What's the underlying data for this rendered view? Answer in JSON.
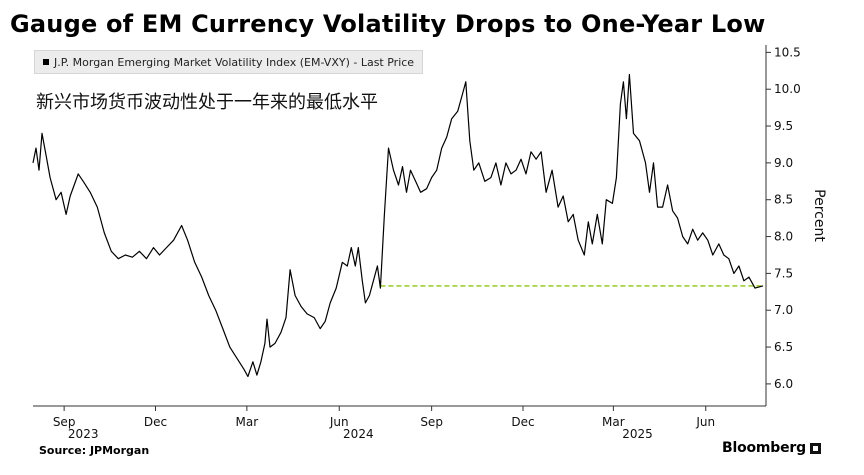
{
  "header": {
    "title": "Gauge of EM Currency Volatility Drops to One-Year Low",
    "legend_label": "J.P. Morgan Emerging Market Volatility Index (EM-VXY) - Last Price",
    "annotation": "新兴市场货币波动性处于一年来的最低水平"
  },
  "footer": {
    "source": "Source: JPMorgan",
    "brand": "Bloomberg"
  },
  "colors": {
    "line": "#000000",
    "reference_line": "#9ed22a",
    "axis": "#333333"
  },
  "chart_data": {
    "type": "line",
    "title": "Gauge of EM Currency Volatility Drops to One-Year Low",
    "ylabel": "Percent",
    "ylim": [
      5.7,
      10.6
    ],
    "yticks": [
      6.0,
      6.5,
      7.0,
      7.5,
      8.0,
      8.5,
      9.0,
      9.5,
      10.0,
      10.5
    ],
    "ytick_labels": [
      "6.0",
      "6.5",
      "7.0",
      "7.5",
      "8.0",
      "8.5",
      "9.0",
      "9.5",
      "10.0",
      "10.5"
    ],
    "y_axis_position": "right",
    "grid": false,
    "legend_position": "top-left",
    "xlim": [
      "2023-08-01",
      "2025-07-31"
    ],
    "month_ticks": [
      {
        "date": "2023-09-01",
        "label": "Sep"
      },
      {
        "date": "2023-12-01",
        "label": "Dec"
      },
      {
        "date": "2024-03-01",
        "label": "Mar"
      },
      {
        "date": "2024-06-01",
        "label": "Jun"
      },
      {
        "date": "2024-09-01",
        "label": "Sep"
      },
      {
        "date": "2024-12-01",
        "label": "Dec"
      },
      {
        "date": "2025-03-01",
        "label": "Mar"
      },
      {
        "date": "2025-06-01",
        "label": "Jun"
      }
    ],
    "year_labels": [
      {
        "date": "2023-09-20",
        "label": "2023"
      },
      {
        "date": "2024-06-20",
        "label": "2024"
      },
      {
        "date": "2025-03-25",
        "label": "2025"
      }
    ],
    "reference_line": {
      "y": 7.33,
      "from": "2024-07-12",
      "to": "2025-07-28",
      "style": "dashed"
    },
    "series": [
      {
        "values": [
          [
            "2023-08-01",
            9.0
          ],
          [
            "2023-08-04",
            9.2
          ],
          [
            "2023-08-07",
            8.9
          ],
          [
            "2023-08-10",
            9.4
          ],
          [
            "2023-08-14",
            9.1
          ],
          [
            "2023-08-18",
            8.8
          ],
          [
            "2023-08-24",
            8.5
          ],
          [
            "2023-08-29",
            8.6
          ],
          [
            "2023-09-03",
            8.3
          ],
          [
            "2023-09-07",
            8.55
          ],
          [
            "2023-09-11",
            8.7
          ],
          [
            "2023-09-15",
            8.85
          ],
          [
            "2023-09-20",
            8.75
          ],
          [
            "2023-09-27",
            8.6
          ],
          [
            "2023-10-04",
            8.4
          ],
          [
            "2023-10-11",
            8.05
          ],
          [
            "2023-10-18",
            7.8
          ],
          [
            "2023-10-25",
            7.7
          ],
          [
            "2023-11-01",
            7.75
          ],
          [
            "2023-11-08",
            7.72
          ],
          [
            "2023-11-15",
            7.8
          ],
          [
            "2023-11-22",
            7.7
          ],
          [
            "2023-11-29",
            7.85
          ],
          [
            "2023-12-05",
            7.75
          ],
          [
            "2023-12-12",
            7.85
          ],
          [
            "2023-12-19",
            7.95
          ],
          [
            "2023-12-27",
            8.15
          ],
          [
            "2024-01-02",
            7.95
          ],
          [
            "2024-01-09",
            7.65
          ],
          [
            "2024-01-16",
            7.45
          ],
          [
            "2024-01-23",
            7.2
          ],
          [
            "2024-01-30",
            7.0
          ],
          [
            "2024-02-06",
            6.75
          ],
          [
            "2024-02-13",
            6.5
          ],
          [
            "2024-02-20",
            6.35
          ],
          [
            "2024-02-27",
            6.2
          ],
          [
            "2024-03-02",
            6.1
          ],
          [
            "2024-03-07",
            6.3
          ],
          [
            "2024-03-11",
            6.12
          ],
          [
            "2024-03-15",
            6.3
          ],
          [
            "2024-03-19",
            6.55
          ],
          [
            "2024-03-21",
            6.88
          ],
          [
            "2024-03-24",
            6.5
          ],
          [
            "2024-03-29",
            6.55
          ],
          [
            "2024-04-04",
            6.7
          ],
          [
            "2024-04-09",
            6.9
          ],
          [
            "2024-04-13",
            7.55
          ],
          [
            "2024-04-18",
            7.2
          ],
          [
            "2024-04-24",
            7.05
          ],
          [
            "2024-04-30",
            6.95
          ],
          [
            "2024-05-07",
            6.9
          ],
          [
            "2024-05-13",
            6.75
          ],
          [
            "2024-05-18",
            6.85
          ],
          [
            "2024-05-23",
            7.1
          ],
          [
            "2024-05-29",
            7.3
          ],
          [
            "2024-06-04",
            7.65
          ],
          [
            "2024-06-09",
            7.6
          ],
          [
            "2024-06-13",
            7.85
          ],
          [
            "2024-06-17",
            7.6
          ],
          [
            "2024-06-20",
            7.85
          ],
          [
            "2024-06-24",
            7.4
          ],
          [
            "2024-06-27",
            7.1
          ],
          [
            "2024-07-01",
            7.2
          ],
          [
            "2024-07-05",
            7.4
          ],
          [
            "2024-07-09",
            7.6
          ],
          [
            "2024-07-12",
            7.3
          ],
          [
            "2024-07-16",
            8.3
          ],
          [
            "2024-07-20",
            9.2
          ],
          [
            "2024-07-25",
            8.9
          ],
          [
            "2024-07-30",
            8.7
          ],
          [
            "2024-08-03",
            8.95
          ],
          [
            "2024-08-07",
            8.6
          ],
          [
            "2024-08-11",
            8.9
          ],
          [
            "2024-08-16",
            8.75
          ],
          [
            "2024-08-21",
            8.6
          ],
          [
            "2024-08-27",
            8.65
          ],
          [
            "2024-09-01",
            8.8
          ],
          [
            "2024-09-06",
            8.9
          ],
          [
            "2024-09-11",
            9.2
          ],
          [
            "2024-09-16",
            9.35
          ],
          [
            "2024-09-21",
            9.6
          ],
          [
            "2024-09-27",
            9.7
          ],
          [
            "2024-10-02",
            9.95
          ],
          [
            "2024-10-05",
            10.1
          ],
          [
            "2024-10-09",
            9.3
          ],
          [
            "2024-10-13",
            8.9
          ],
          [
            "2024-10-18",
            9.0
          ],
          [
            "2024-10-24",
            8.75
          ],
          [
            "2024-10-30",
            8.8
          ],
          [
            "2024-11-04",
            9.0
          ],
          [
            "2024-11-09",
            8.7
          ],
          [
            "2024-11-14",
            9.0
          ],
          [
            "2024-11-19",
            8.85
          ],
          [
            "2024-11-24",
            8.9
          ],
          [
            "2024-11-29",
            9.05
          ],
          [
            "2024-12-04",
            8.85
          ],
          [
            "2024-12-09",
            9.15
          ],
          [
            "2024-12-14",
            9.05
          ],
          [
            "2024-12-19",
            9.15
          ],
          [
            "2024-12-24",
            8.6
          ],
          [
            "2024-12-30",
            8.9
          ],
          [
            "2025-01-05",
            8.4
          ],
          [
            "2025-01-10",
            8.55
          ],
          [
            "2025-01-15",
            8.2
          ],
          [
            "2025-01-20",
            8.3
          ],
          [
            "2025-01-25",
            7.95
          ],
          [
            "2025-01-31",
            7.75
          ],
          [
            "2025-02-04",
            8.2
          ],
          [
            "2025-02-08",
            7.9
          ],
          [
            "2025-02-13",
            8.3
          ],
          [
            "2025-02-18",
            7.9
          ],
          [
            "2025-02-22",
            8.5
          ],
          [
            "2025-02-28",
            8.45
          ],
          [
            "2025-03-04",
            8.8
          ],
          [
            "2025-03-08",
            9.8
          ],
          [
            "2025-03-11",
            10.1
          ],
          [
            "2025-03-14",
            9.6
          ],
          [
            "2025-03-17",
            10.2
          ],
          [
            "2025-03-21",
            9.4
          ],
          [
            "2025-03-27",
            9.3
          ],
          [
            "2025-04-02",
            9.0
          ],
          [
            "2025-04-06",
            8.6
          ],
          [
            "2025-04-10",
            9.0
          ],
          [
            "2025-04-14",
            8.4
          ],
          [
            "2025-04-19",
            8.4
          ],
          [
            "2025-04-24",
            8.7
          ],
          [
            "2025-04-29",
            8.35
          ],
          [
            "2025-05-04",
            8.25
          ],
          [
            "2025-05-09",
            8.0
          ],
          [
            "2025-05-14",
            7.9
          ],
          [
            "2025-05-19",
            8.1
          ],
          [
            "2025-05-24",
            7.95
          ],
          [
            "2025-05-29",
            8.05
          ],
          [
            "2025-06-03",
            7.95
          ],
          [
            "2025-06-08",
            7.75
          ],
          [
            "2025-06-14",
            7.9
          ],
          [
            "2025-06-19",
            7.75
          ],
          [
            "2025-06-24",
            7.7
          ],
          [
            "2025-06-29",
            7.5
          ],
          [
            "2025-07-04",
            7.6
          ],
          [
            "2025-07-09",
            7.4
          ],
          [
            "2025-07-14",
            7.45
          ],
          [
            "2025-07-20",
            7.3
          ],
          [
            "2025-07-28",
            7.33
          ]
        ]
      }
    ]
  }
}
